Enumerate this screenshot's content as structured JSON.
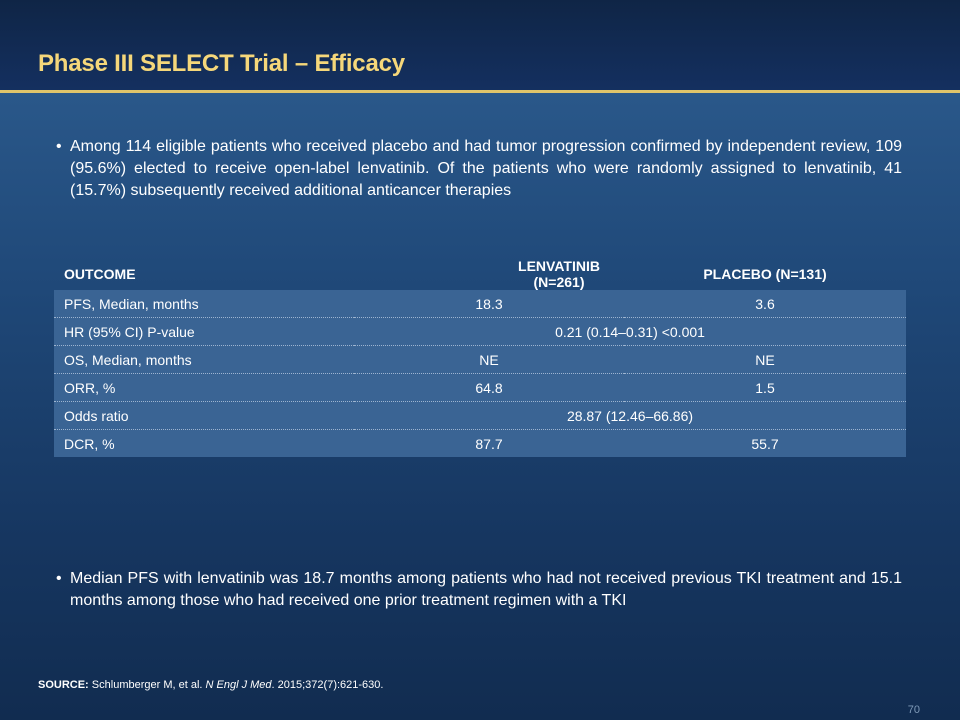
{
  "slide": {
    "title": "Phase III SELECT Trial – Efficacy",
    "bullets": [
      "Among 114 eligible patients who received placebo and had tumor progression confirmed by independent review, 109 (95.6%) elected to receive open-label lenvatinib. Of the patients who were randomly assigned to lenvatinib, 41 (15.7%) subsequently received additional anticancer therapies",
      "Median PFS with lenvatinib was 18.7 months among patients who had not received previous TKI treatment and 15.1 months among those who had received one prior treatment regimen with a TKI"
    ],
    "bullet_glyph": "•",
    "table": {
      "headers": [
        "OUTCOME",
        "LENVATINIB (N=261)",
        "PLACEBO (N=131)"
      ],
      "rows": [
        {
          "outcome": "PFS, Median, months",
          "lenvatinib": "18.3",
          "placebo": "3.6"
        },
        {
          "outcome": "HR (95% CI) P-value",
          "combined": "0.21 (0.14–0.31) <0.001"
        },
        {
          "outcome": "OS, Median, months",
          "lenvatinib": "NE",
          "placebo": "NE"
        },
        {
          "outcome": "ORR, %",
          "lenvatinib": "64.8",
          "placebo": "1.5"
        },
        {
          "outcome": "Odds ratio",
          "combined": "28.87 (12.46–66.86)"
        },
        {
          "outcome": "DCR, %",
          "lenvatinib": "87.7",
          "placebo": "55.7"
        }
      ]
    },
    "source": {
      "label": "SOURCE:",
      "authors": "Schlumberger M, et al.",
      "journal": "N Engl J Med",
      "citation": ". 2015;372(7):621-630."
    },
    "page_number": "70"
  },
  "colors": {
    "title": "#f5d77a",
    "rule": "#e0c46a",
    "row_bg": "#3a6494"
  }
}
